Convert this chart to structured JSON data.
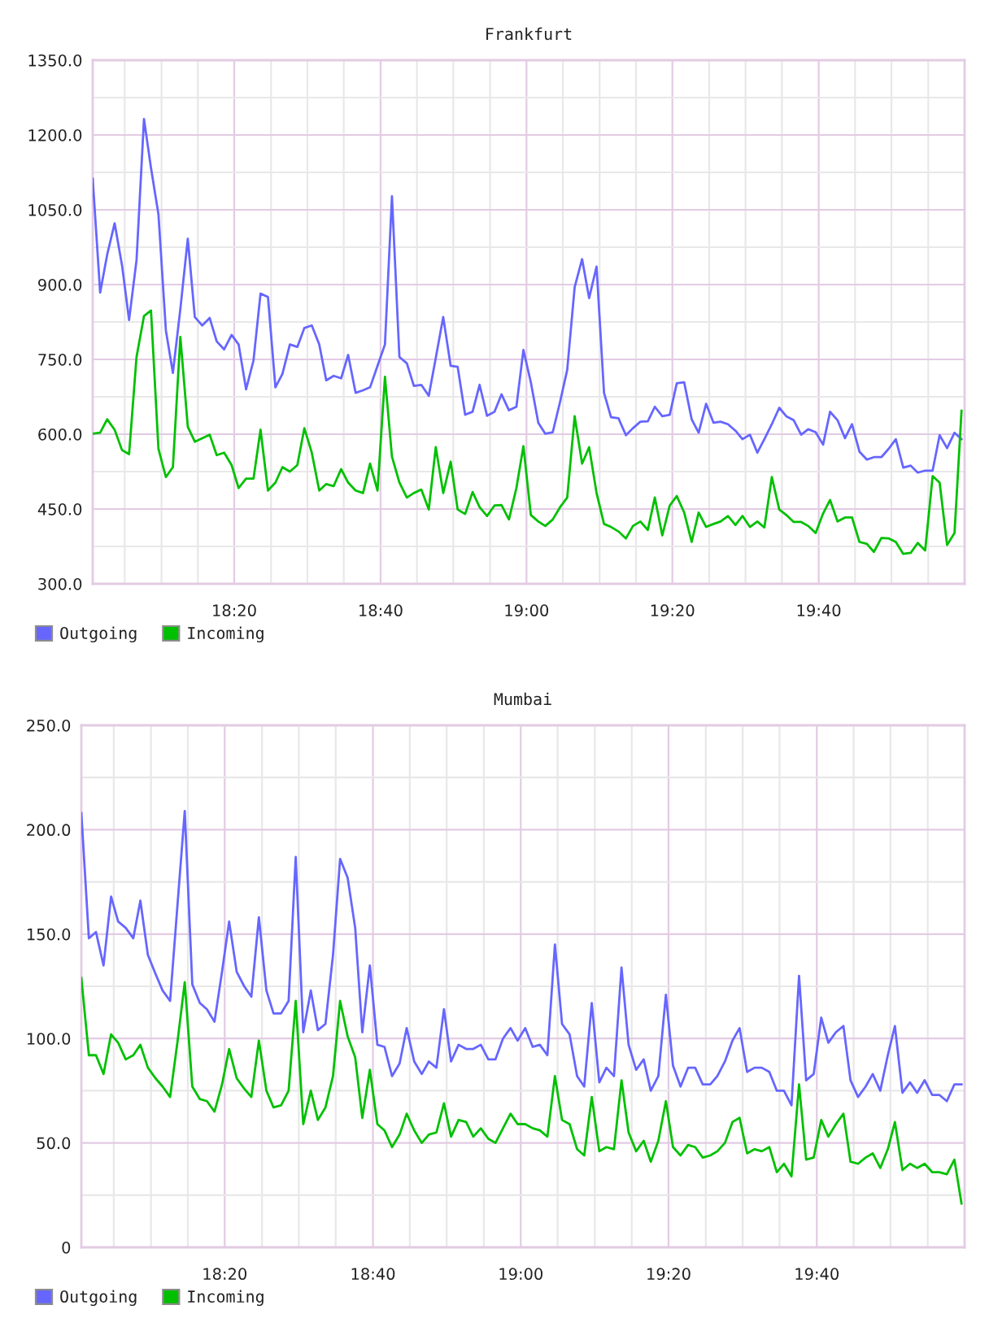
{
  "chart_data": [
    {
      "type": "line",
      "title": "Frankfurt",
      "x": [
        18.01,
        18.027,
        18.043,
        18.06,
        18.077,
        18.093,
        18.11,
        18.127,
        18.143,
        18.16,
        18.177,
        18.193,
        18.21,
        18.227,
        18.243,
        18.26,
        18.277,
        18.293,
        18.31,
        18.327,
        18.343,
        18.36,
        18.377,
        18.393,
        18.41,
        18.427,
        18.443,
        18.46,
        18.477,
        18.493,
        18.51,
        18.527,
        18.543,
        18.56,
        18.577,
        18.593,
        18.61,
        18.627,
        18.643,
        18.66,
        18.677,
        18.693,
        18.71,
        18.727,
        18.743,
        18.76,
        18.777,
        18.793,
        18.81,
        18.827,
        18.843,
        18.86,
        18.877,
        18.893,
        18.91,
        18.927,
        18.943,
        18.96,
        18.977,
        18.993,
        19.01,
        19.027,
        19.043,
        19.06,
        19.077,
        19.093,
        19.11,
        19.127,
        19.143,
        19.16,
        19.177,
        19.193,
        19.21,
        19.227,
        19.243,
        19.26,
        19.277,
        19.293,
        19.31,
        19.327,
        19.343,
        19.36,
        19.377,
        19.393,
        19.41,
        19.427,
        19.443,
        19.46,
        19.477,
        19.493,
        19.51,
        19.527,
        19.543,
        19.56,
        19.577,
        19.593,
        19.61,
        19.627,
        19.643,
        19.66,
        19.677,
        19.693,
        19.71,
        19.727,
        19.743,
        19.76,
        19.777,
        19.793,
        19.81,
        19.827,
        19.843,
        19.86,
        19.877,
        19.893,
        19.91,
        19.927,
        19.943,
        19.96,
        19.977,
        19.993
      ],
      "series": [
        {
          "name": "Outgoing",
          "color": "#6666ff",
          "values": [
            1112,
            884,
            960,
            1023,
            938,
            829,
            949,
            1232,
            1134,
            1041,
            808,
            723,
            851,
            992,
            835,
            818,
            833,
            786,
            770,
            799,
            780,
            690,
            748,
            882,
            875,
            694,
            721,
            780,
            775,
            813,
            818,
            780,
            708,
            717,
            712,
            759,
            683,
            688,
            694,
            737,
            780,
            1077,
            755,
            742,
            697,
            699,
            677,
            753,
            835,
            737,
            735,
            639,
            645,
            699,
            637,
            645,
            680,
            648,
            655,
            769,
            704,
            623,
            601,
            604,
            666,
            729,
            895,
            951,
            873,
            936,
            683,
            634,
            632,
            598,
            612,
            625,
            626,
            655,
            636,
            639,
            702,
            704,
            630,
            603,
            661,
            623,
            625,
            620,
            607,
            590,
            599,
            563,
            590,
            620,
            653,
            636,
            628,
            599,
            610,
            604,
            579,
            645,
            628,
            592,
            620,
            565,
            549,
            554,
            554,
            571,
            590,
            533,
            537,
            523,
            527,
            527,
            598,
            572,
            603,
            590
          ]
        },
        {
          "name": "Incoming",
          "color": "#00c000",
          "values": [
            601,
            603,
            630,
            609,
            568,
            560,
            755,
            837,
            848,
            571,
            514,
            534,
            795,
            615,
            585,
            592,
            599,
            558,
            563,
            538,
            492,
            511,
            511,
            609,
            487,
            503,
            534,
            525,
            538,
            612,
            563,
            487,
            500,
            496,
            530,
            503,
            487,
            482,
            541,
            487,
            715,
            555,
            503,
            473,
            482,
            489,
            449,
            574,
            482,
            545,
            449,
            440,
            484,
            454,
            436,
            457,
            458,
            429,
            492,
            576,
            438,
            425,
            416,
            429,
            454,
            473,
            636,
            541,
            574,
            482,
            420,
            414,
            405,
            391,
            416,
            425,
            408,
            473,
            397,
            457,
            476,
            443,
            384,
            443,
            414,
            420,
            425,
            436,
            418,
            436,
            414,
            425,
            413,
            514,
            449,
            438,
            424,
            424,
            416,
            402,
            441,
            468,
            425,
            433,
            433,
            384,
            380,
            364,
            392,
            391,
            384,
            360,
            362,
            382,
            367,
            516,
            503,
            378,
            402,
            647
          ]
        }
      ],
      "xlim": [
        18.01,
        20.0
      ],
      "xticks": [
        {
          "value": 18.083,
          "label": null
        },
        {
          "value": 18.167,
          "label": null
        },
        {
          "value": 18.25,
          "label": null
        },
        {
          "value": 18.333,
          "label": "18:20"
        },
        {
          "value": 18.417,
          "label": null
        },
        {
          "value": 18.5,
          "label": null
        },
        {
          "value": 18.583,
          "label": null
        },
        {
          "value": 18.667,
          "label": "18:40"
        },
        {
          "value": 18.75,
          "label": null
        },
        {
          "value": 18.833,
          "label": null
        },
        {
          "value": 18.917,
          "label": null
        },
        {
          "value": 19,
          "label": "19:00"
        },
        {
          "value": 19.083,
          "label": null
        },
        {
          "value": 19.167,
          "label": null
        },
        {
          "value": 19.25,
          "label": null
        },
        {
          "value": 19.333,
          "label": "19:20"
        },
        {
          "value": 19.417,
          "label": null
        },
        {
          "value": 19.5,
          "label": null
        },
        {
          "value": 19.583,
          "label": null
        },
        {
          "value": 19.667,
          "label": "19:40"
        },
        {
          "value": 19.75,
          "label": null
        },
        {
          "value": 19.833,
          "label": null
        },
        {
          "value": 19.917,
          "label": null
        }
      ],
      "ylim": [
        300,
        1350
      ],
      "yticks": [
        {
          "value": 300,
          "label": "300.0"
        },
        {
          "value": 375,
          "label": null
        },
        {
          "value": 450,
          "label": "450.0"
        },
        {
          "value": 525,
          "label": null
        },
        {
          "value": 600,
          "label": "600.0"
        },
        {
          "value": 675,
          "label": null
        },
        {
          "value": 750,
          "label": "750.0"
        },
        {
          "value": 825,
          "label": null
        },
        {
          "value": 900,
          "label": "900.0"
        },
        {
          "value": 975,
          "label": null
        },
        {
          "value": 1050,
          "label": "1050.0"
        },
        {
          "value": 1125,
          "label": null
        },
        {
          "value": 1200,
          "label": "1200.0"
        },
        {
          "value": 1275,
          "label": null
        },
        {
          "value": 1350,
          "label": "1350.0"
        }
      ],
      "grid": true,
      "legend": "bottom left"
    },
    {
      "type": "line",
      "title": "Mumbai",
      "x": [
        18.01,
        18.027,
        18.043,
        18.06,
        18.077,
        18.093,
        18.11,
        18.127,
        18.143,
        18.16,
        18.177,
        18.193,
        18.21,
        18.227,
        18.243,
        18.26,
        18.277,
        18.293,
        18.31,
        18.327,
        18.343,
        18.36,
        18.377,
        18.393,
        18.41,
        18.427,
        18.443,
        18.46,
        18.477,
        18.493,
        18.51,
        18.527,
        18.543,
        18.56,
        18.577,
        18.593,
        18.61,
        18.627,
        18.643,
        18.66,
        18.677,
        18.693,
        18.71,
        18.727,
        18.743,
        18.76,
        18.777,
        18.793,
        18.81,
        18.827,
        18.843,
        18.86,
        18.877,
        18.893,
        18.91,
        18.927,
        18.943,
        18.96,
        18.977,
        18.993,
        19.01,
        19.027,
        19.043,
        19.06,
        19.077,
        19.093,
        19.11,
        19.127,
        19.143,
        19.16,
        19.177,
        19.193,
        19.21,
        19.227,
        19.243,
        19.26,
        19.277,
        19.293,
        19.31,
        19.327,
        19.343,
        19.36,
        19.377,
        19.393,
        19.41,
        19.427,
        19.443,
        19.46,
        19.477,
        19.493,
        19.51,
        19.527,
        19.543,
        19.56,
        19.577,
        19.593,
        19.61,
        19.627,
        19.643,
        19.66,
        19.677,
        19.693,
        19.71,
        19.727,
        19.743,
        19.76,
        19.777,
        19.793,
        19.81,
        19.827,
        19.843,
        19.86,
        19.877,
        19.893,
        19.91,
        19.927,
        19.943,
        19.96,
        19.977,
        19.993
      ],
      "series": [
        {
          "name": "Outgoing",
          "color": "#6666ff",
          "values": [
            208,
            148,
            151,
            135,
            168,
            156,
            153,
            148,
            166,
            140,
            131,
            123,
            118,
            165,
            209,
            126,
            117,
            114,
            108,
            132,
            156,
            132,
            125,
            120,
            158,
            123,
            112,
            112,
            118,
            187,
            103,
            123,
            104,
            107,
            140,
            186,
            177,
            153,
            103,
            135,
            97,
            96,
            82,
            88,
            105,
            89,
            83,
            89,
            86,
            114,
            89,
            97,
            95,
            95,
            97,
            90,
            90,
            100,
            105,
            99,
            105,
            96,
            97,
            92,
            145,
            107,
            102,
            82,
            77,
            117,
            79,
            86,
            82,
            134,
            97,
            85,
            90,
            75,
            82,
            121,
            87,
            77,
            86,
            86,
            78,
            78,
            82,
            89,
            99,
            105,
            84,
            86,
            86,
            84,
            75,
            75,
            68,
            130,
            80,
            83,
            110,
            98,
            103,
            106,
            80,
            72,
            77,
            83,
            75,
            92,
            106,
            74,
            79,
            74,
            80,
            73,
            73,
            70,
            78,
            78
          ]
        },
        {
          "name": "Incoming",
          "color": "#00c000",
          "values": [
            129,
            92,
            92,
            83,
            102,
            98,
            90,
            92,
            97,
            86,
            81,
            77,
            72,
            99,
            127,
            77,
            71,
            70,
            65,
            78,
            95,
            81,
            76,
            72,
            99,
            75,
            67,
            68,
            75,
            118,
            59,
            75,
            61,
            67,
            82,
            118,
            101,
            91,
            62,
            85,
            59,
            56,
            48,
            54,
            64,
            56,
            50,
            54,
            55,
            69,
            53,
            61,
            60,
            53,
            57,
            52,
            50,
            57,
            64,
            59,
            59,
            57,
            56,
            53,
            82,
            61,
            59,
            47,
            44,
            72,
            46,
            48,
            47,
            80,
            55,
            46,
            51,
            41,
            51,
            70,
            48,
            44,
            49,
            48,
            43,
            44,
            46,
            50,
            60,
            62,
            45,
            47,
            46,
            48,
            36,
            40,
            34,
            78,
            42,
            43,
            61,
            53,
            59,
            64,
            41,
            40,
            43,
            45,
            38,
            47,
            60,
            37,
            40,
            38,
            40,
            36,
            36,
            35,
            42,
            21
          ]
        }
      ],
      "xlim": [
        18.01,
        20.0
      ],
      "xticks": [
        {
          "value": 18.083,
          "label": null
        },
        {
          "value": 18.167,
          "label": null
        },
        {
          "value": 18.25,
          "label": null
        },
        {
          "value": 18.333,
          "label": "18:20"
        },
        {
          "value": 18.417,
          "label": null
        },
        {
          "value": 18.5,
          "label": null
        },
        {
          "value": 18.583,
          "label": null
        },
        {
          "value": 18.667,
          "label": "18:40"
        },
        {
          "value": 18.75,
          "label": null
        },
        {
          "value": 18.833,
          "label": null
        },
        {
          "value": 18.917,
          "label": null
        },
        {
          "value": 19,
          "label": "19:00"
        },
        {
          "value": 19.083,
          "label": null
        },
        {
          "value": 19.167,
          "label": null
        },
        {
          "value": 19.25,
          "label": null
        },
        {
          "value": 19.333,
          "label": "19:20"
        },
        {
          "value": 19.417,
          "label": null
        },
        {
          "value": 19.5,
          "label": null
        },
        {
          "value": 19.583,
          "label": null
        },
        {
          "value": 19.667,
          "label": "19:40"
        },
        {
          "value": 19.75,
          "label": null
        },
        {
          "value": 19.833,
          "label": null
        },
        {
          "value": 19.917,
          "label": null
        }
      ],
      "ylim": [
        0,
        250
      ],
      "yticks": [
        0,
        {
          "value": 25,
          "label": null
        },
        {
          "value": 50,
          "label": "50.0"
        },
        {
          "value": 75,
          "label": null
        },
        {
          "value": 100,
          "label": "100.0"
        },
        {
          "value": 125,
          "label": null
        },
        {
          "value": 150,
          "label": "150.0"
        },
        {
          "value": 175,
          "label": null
        },
        {
          "value": 200,
          "label": "200.0"
        },
        {
          "value": 225,
          "label": null
        },
        {
          "value": 250,
          "label": "250.0"
        }
      ],
      "grid": true,
      "legend": "bottom left"
    }
  ]
}
